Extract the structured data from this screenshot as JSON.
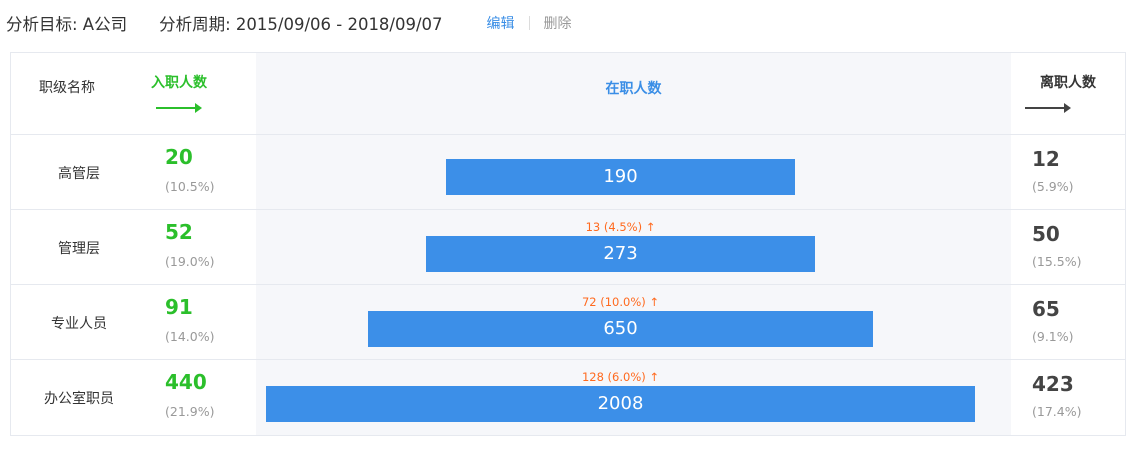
{
  "header": {
    "target": "分析目标: A公司",
    "period": "分析周期: 2015/09/06 - 2018/09/07",
    "edit_label": "编辑",
    "delete_label": "删除"
  },
  "columns": {
    "name": "职级名称",
    "hired": "入职人数",
    "current": "在职人数",
    "left": "离职人数"
  },
  "colors": {
    "hired": "#2bbf2b",
    "bar": "#3c8fe8",
    "delta": "#ff6a1f",
    "accent": "#3a8ee6"
  },
  "rows": [
    {
      "name": "高管层",
      "hired": "20",
      "hired_pct": "(10.5%)",
      "current": "190",
      "delta": "",
      "left": "12",
      "left_pct": "(5.9%)"
    },
    {
      "name": "管理层",
      "hired": "52",
      "hired_pct": "(19.0%)",
      "current": "273",
      "delta": "13 (4.5%) ↑",
      "left": "50",
      "left_pct": "(15.5%)"
    },
    {
      "name": "专业人员",
      "hired": "91",
      "hired_pct": "(14.0%)",
      "current": "650",
      "delta": "72 (10.0%) ↑",
      "left": "65",
      "left_pct": "(9.1%)"
    },
    {
      "name": "办公室职员",
      "hired": "440",
      "hired_pct": "(21.9%)",
      "current": "2008",
      "delta": "128 (6.0%) ↑",
      "left": "423",
      "left_pct": "(17.4%)"
    }
  ]
}
